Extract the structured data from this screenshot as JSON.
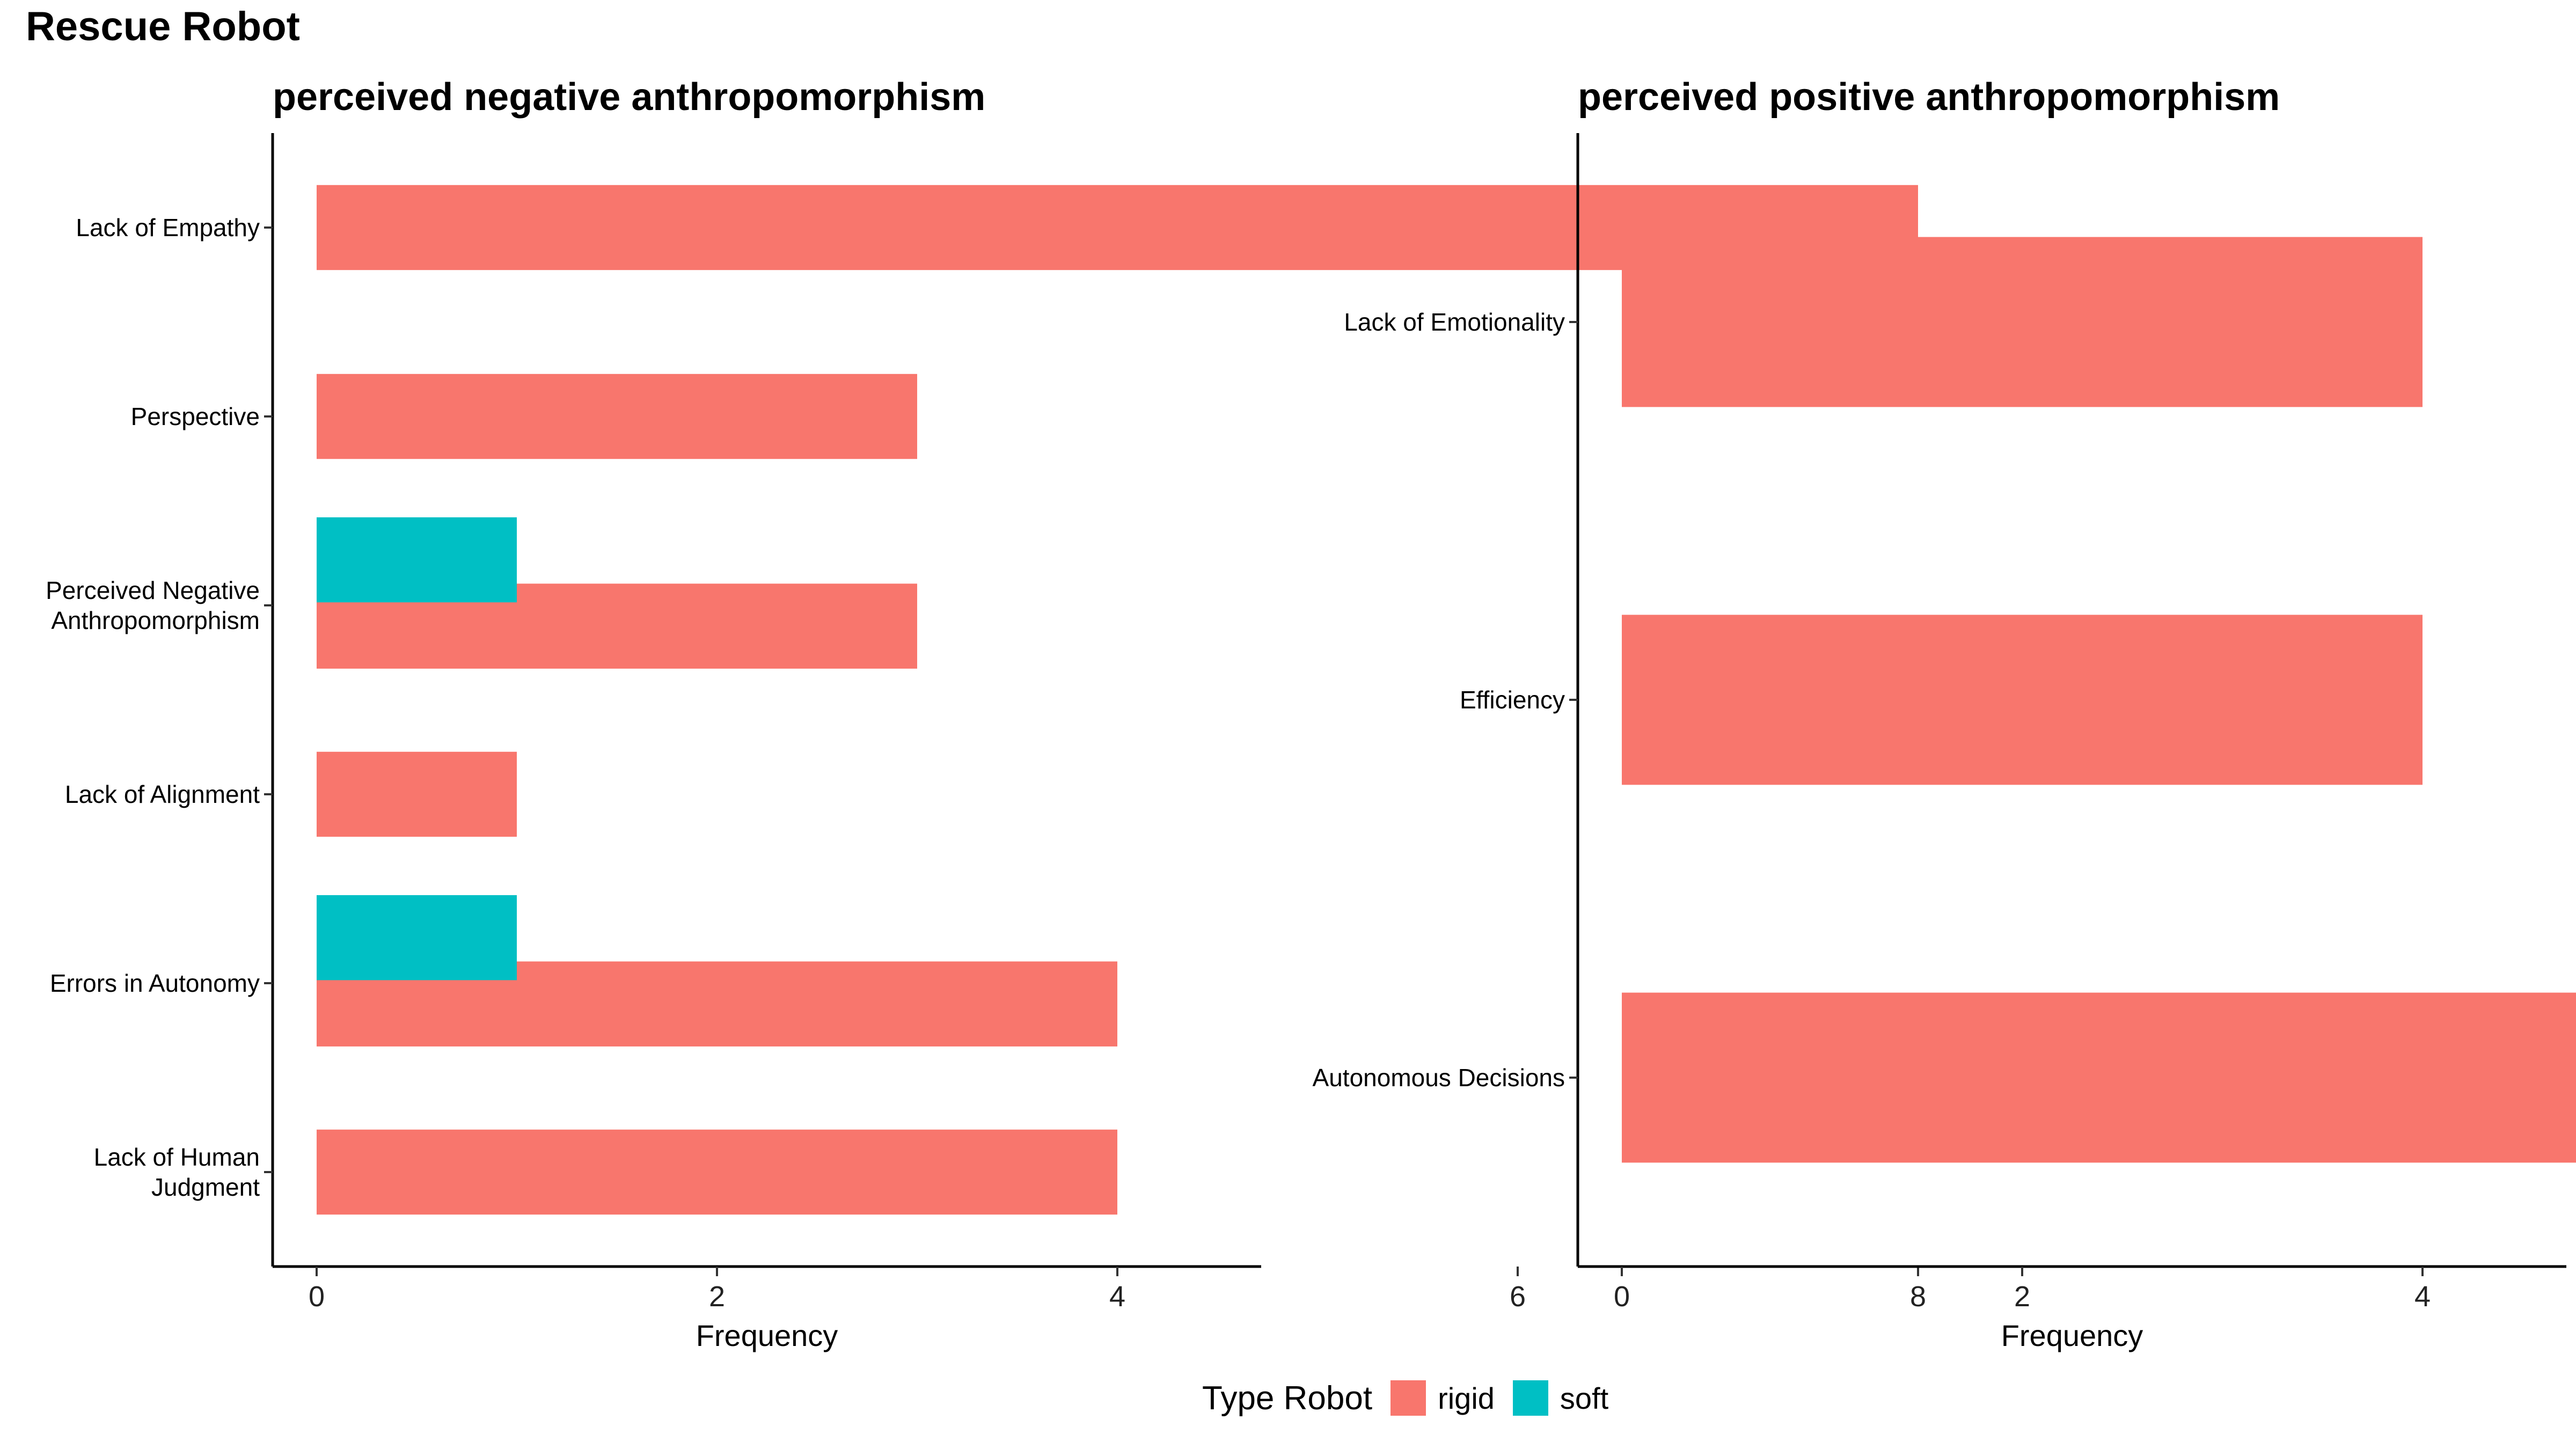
{
  "title": "Rescue Robot",
  "legend": {
    "title": "Type Robot",
    "items": [
      {
        "label": "rigid",
        "color": "#F8766D"
      },
      {
        "label": "soft",
        "color": "#00BFC4"
      }
    ]
  },
  "chart_data": [
    {
      "type": "bar",
      "orientation": "horizontal",
      "title": "perceived negative anthropomorphism",
      "xlabel": "Frequency",
      "ylabel": "",
      "xlim": [
        0,
        9
      ],
      "xticks": [
        0,
        2,
        4,
        6,
        8
      ],
      "grid": false,
      "legend_position": "bottom",
      "categories": [
        "Lack of Empathy",
        "Perspective",
        "Perceived Negative\nAnthropomorphism",
        "Lack of Alignment",
        "Errors in Autonomy",
        "Lack of Human\nJudgment"
      ],
      "series": [
        {
          "name": "rigid",
          "color": "#F8766D",
          "values": [
            8,
            3,
            3,
            1,
            4,
            4
          ]
        },
        {
          "name": "soft",
          "color": "#00BFC4",
          "values": [
            0,
            0,
            1,
            0,
            1,
            0
          ]
        }
      ]
    },
    {
      "type": "bar",
      "orientation": "horizontal",
      "title": "perceived positive anthropomorphism",
      "xlabel": "Frequency",
      "ylabel": "",
      "xlim": [
        0,
        9
      ],
      "xticks": [
        0,
        2,
        4,
        6,
        8
      ],
      "grid": false,
      "legend_position": "bottom",
      "categories": [
        "Lack of Emotionality",
        "Efficiency",
        "Autonomous Decisions"
      ],
      "series": [
        {
          "name": "rigid",
          "color": "#F8766D",
          "values": [
            4,
            4,
            5
          ]
        },
        {
          "name": "soft",
          "color": "#00BFC4",
          "values": [
            0,
            0,
            0
          ]
        }
      ]
    }
  ]
}
